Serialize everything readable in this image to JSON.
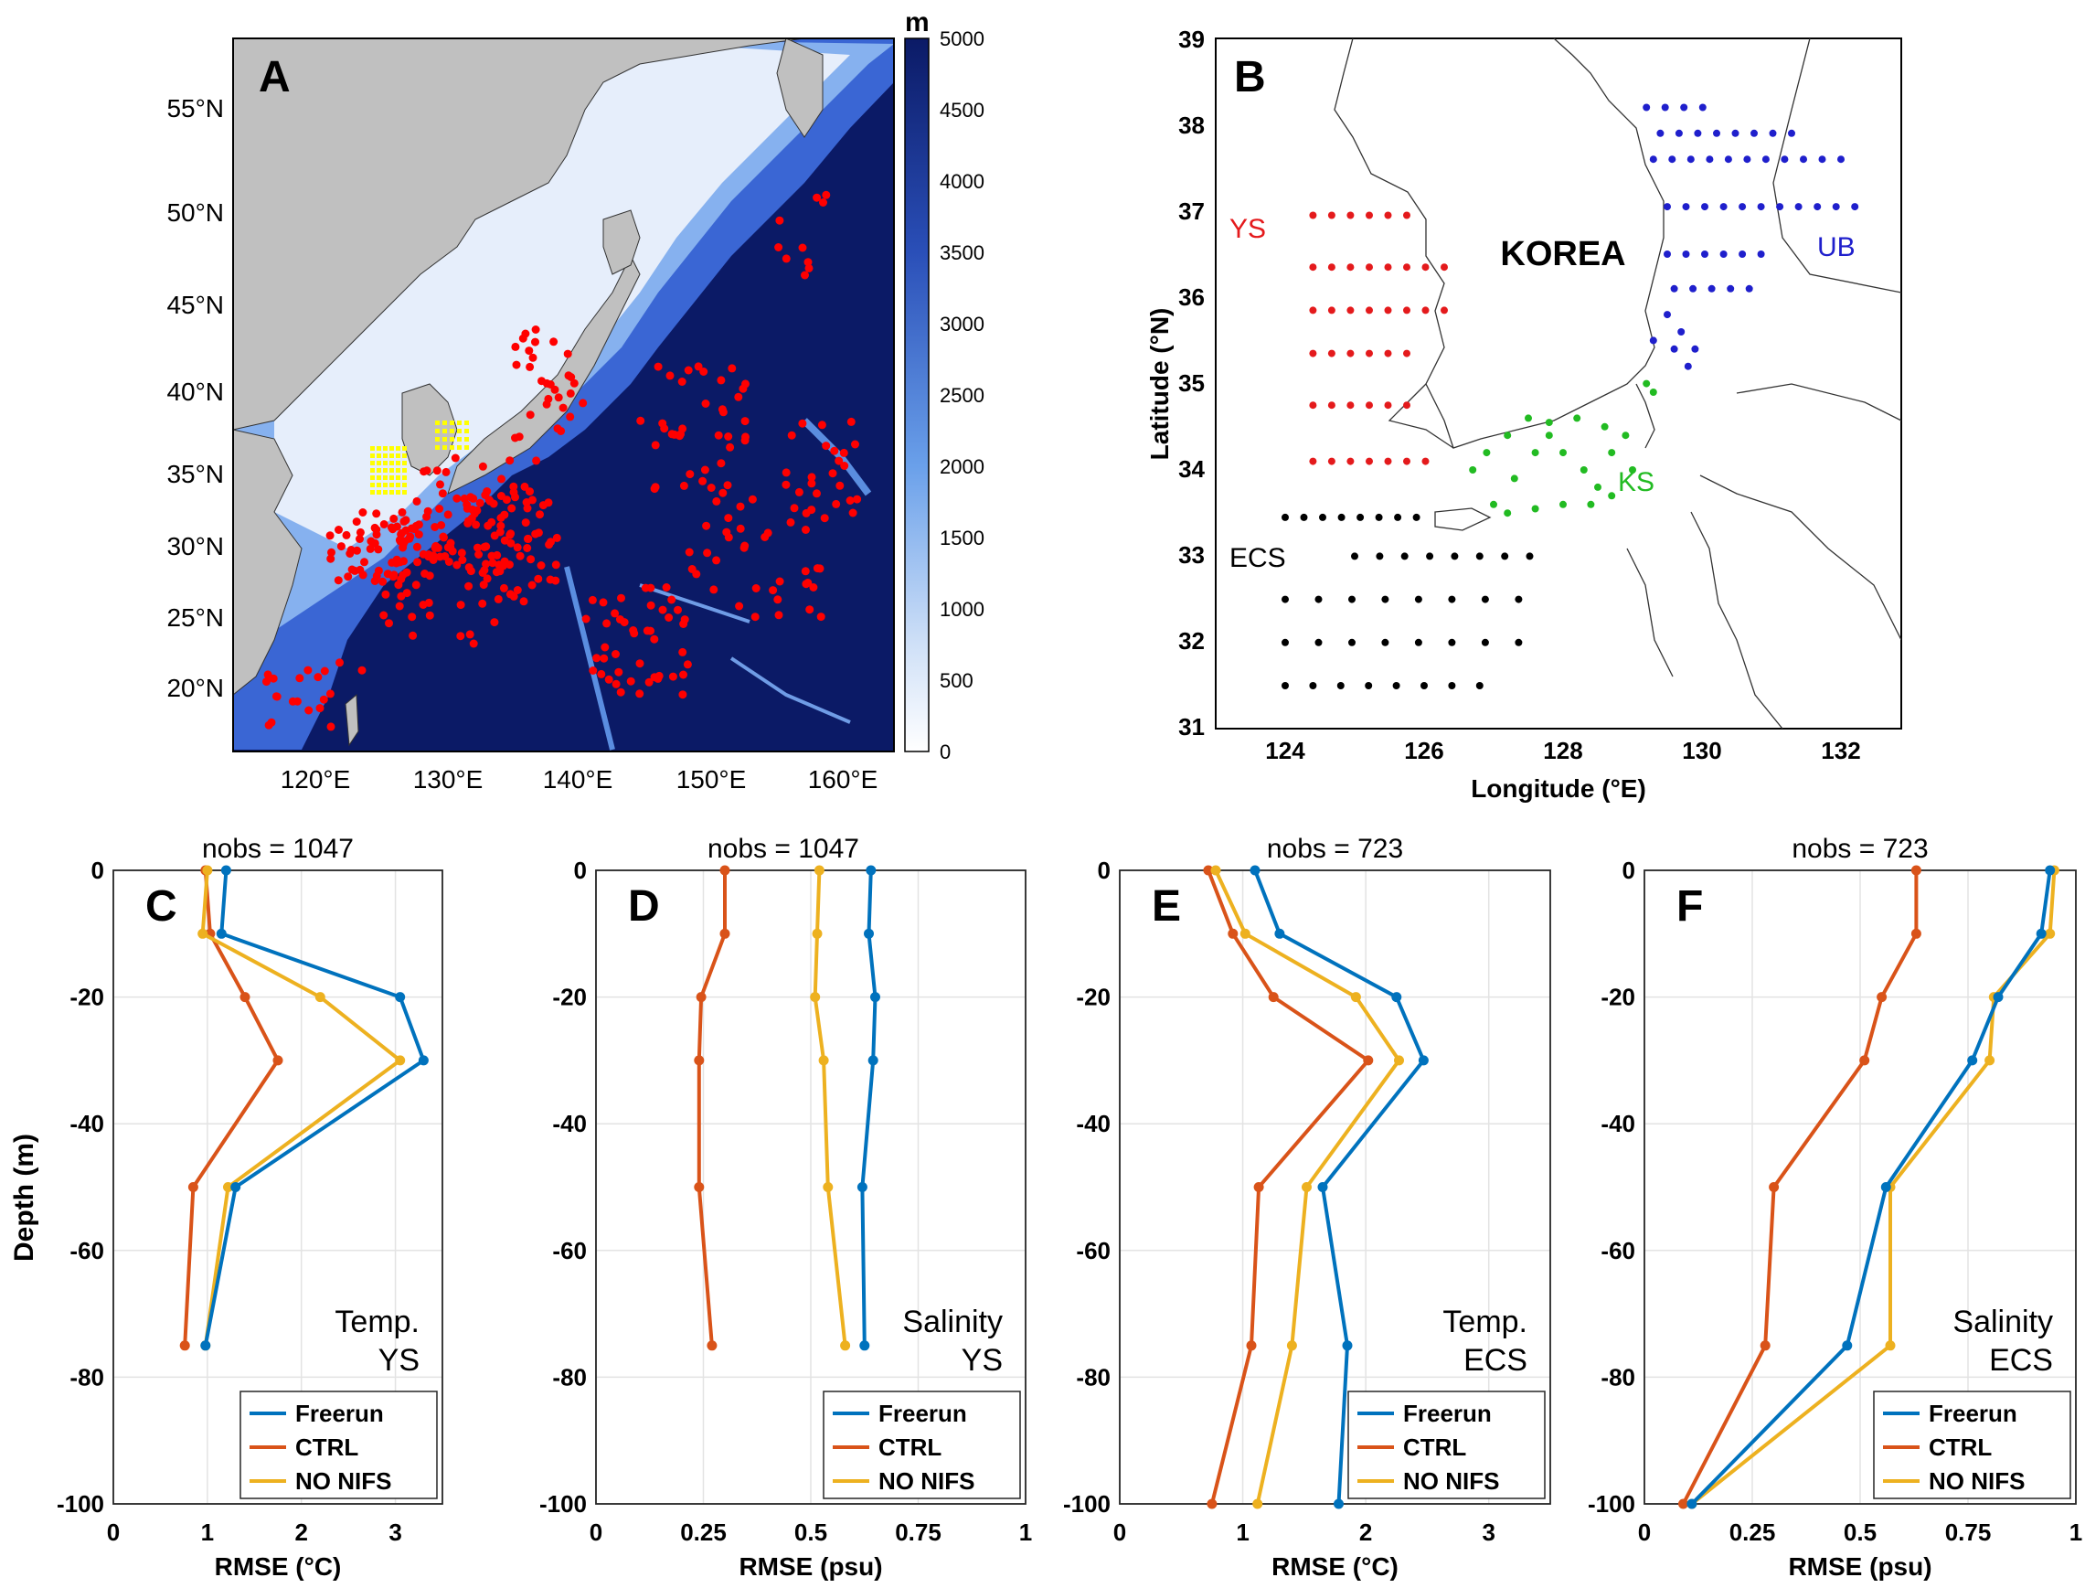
{
  "panels": {
    "A": {
      "letter": "A",
      "colorbar_unit": "m",
      "colorbar_ticks": [
        "5000",
        "4500",
        "4000",
        "3500",
        "3000",
        "2500",
        "2000",
        "1500",
        "1000",
        "500",
        "0"
      ],
      "lat_ticks": [
        "55°N",
        "50°N",
        "45°N",
        "40°N",
        "35°N",
        "30°N",
        "25°N",
        "20°N"
      ],
      "lon_ticks": [
        "120°E",
        "130°E",
        "140°E",
        "150°E",
        "160°E"
      ]
    },
    "B": {
      "letter": "B",
      "xlabel": "Longitude (°E)",
      "ylabel": "Latitude (°N)",
      "x_ticks": [
        "124",
        "126",
        "128",
        "130",
        "132"
      ],
      "y_ticks": [
        "39",
        "38",
        "37",
        "36",
        "35",
        "34",
        "33",
        "32",
        "31"
      ],
      "labels": {
        "korea": "KOREA",
        "ys": "YS",
        "ub": "UB",
        "ks": "KS",
        "ecs": "ECS"
      }
    }
  },
  "legend_labels": [
    "Freerun",
    "CTRL",
    "NO NIFS"
  ],
  "colors": {
    "Freerun": "#0072BD",
    "CTRL": "#D95319",
    "NO NIFS": "#EDB120",
    "ys": "#E41A1C",
    "ub": "#1F1FCC",
    "ks": "#22BB22",
    "ecs": "#000000",
    "obs_yellow": "#FFFF00",
    "obs_red": "#FF0000"
  },
  "ylabel": "Depth (m)",
  "y_ticks": [
    "0",
    "-20",
    "-40",
    "-60",
    "-80",
    "-100"
  ],
  "chart_data": [
    {
      "type": "line",
      "panel": "C",
      "title": "nobs = 1047",
      "annotation": [
        "Temp.",
        "YS"
      ],
      "xlabel": "RMSE (°C)",
      "xlim": [
        0,
        3.5
      ],
      "ylim": [
        -100,
        0
      ],
      "x_ticks": [
        "0",
        "1",
        "2",
        "3"
      ],
      "series": [
        {
          "name": "Freerun",
          "x": [
            1.2,
            1.15,
            3.05,
            3.3,
            1.3,
            0.98
          ],
          "y": [
            0,
            -10,
            -20,
            -30,
            -50,
            -75
          ]
        },
        {
          "name": "CTRL",
          "x": [
            0.98,
            1.03,
            1.4,
            1.75,
            0.85,
            0.76
          ],
          "y": [
            0,
            -10,
            -20,
            -30,
            -50,
            -75
          ]
        },
        {
          "name": "NO NIFS",
          "x": [
            1.0,
            0.95,
            2.2,
            3.05,
            1.22,
            0.98
          ],
          "y": [
            0,
            -10,
            -20,
            -30,
            -50,
            -75
          ]
        }
      ]
    },
    {
      "type": "line",
      "panel": "D",
      "title": "nobs = 1047",
      "annotation": [
        "Salinity",
        "YS"
      ],
      "xlabel": "RMSE (psu)",
      "xlim": [
        0,
        1
      ],
      "ylim": [
        -100,
        0
      ],
      "x_ticks": [
        "0",
        "0.25",
        "0.5",
        "0.75",
        "1"
      ],
      "series": [
        {
          "name": "Freerun",
          "x": [
            0.64,
            0.635,
            0.65,
            0.645,
            0.62,
            0.625
          ],
          "y": [
            0,
            -10,
            -20,
            -30,
            -50,
            -75
          ]
        },
        {
          "name": "CTRL",
          "x": [
            0.3,
            0.3,
            0.245,
            0.24,
            0.24,
            0.27
          ],
          "y": [
            0,
            -10,
            -20,
            -30,
            -50,
            -75
          ]
        },
        {
          "name": "NO NIFS",
          "x": [
            0.52,
            0.515,
            0.51,
            0.53,
            0.54,
            0.58
          ],
          "y": [
            0,
            -10,
            -20,
            -30,
            -50,
            -75
          ]
        }
      ]
    },
    {
      "type": "line",
      "panel": "E",
      "title": "nobs = 723",
      "annotation": [
        "Temp.",
        "ECS"
      ],
      "xlabel": "RMSE (°C)",
      "xlim": [
        0,
        3.5
      ],
      "ylim": [
        -100,
        0
      ],
      "x_ticks": [
        "0",
        "1",
        "2",
        "3"
      ],
      "series": [
        {
          "name": "Freerun",
          "x": [
            1.1,
            1.3,
            2.25,
            2.47,
            1.65,
            1.85,
            1.78
          ],
          "y": [
            0,
            -10,
            -20,
            -30,
            -50,
            -75,
            -100
          ]
        },
        {
          "name": "CTRL",
          "x": [
            0.72,
            0.92,
            1.25,
            2.02,
            1.13,
            1.07,
            0.75
          ],
          "y": [
            0,
            -10,
            -20,
            -30,
            -50,
            -75,
            -100
          ]
        },
        {
          "name": "NO NIFS",
          "x": [
            0.78,
            1.02,
            1.92,
            2.27,
            1.52,
            1.4,
            1.12
          ],
          "y": [
            0,
            -10,
            -20,
            -30,
            -50,
            -75,
            -100
          ]
        }
      ]
    },
    {
      "type": "line",
      "panel": "F",
      "title": "nobs = 723",
      "annotation": [
        "Salinity",
        "ECS"
      ],
      "xlabel": "RMSE (psu)",
      "xlim": [
        0,
        1
      ],
      "ylim": [
        -100,
        0
      ],
      "x_ticks": [
        "0",
        "0.25",
        "0.5",
        "0.75",
        "1"
      ],
      "series": [
        {
          "name": "Freerun",
          "x": [
            0.94,
            0.92,
            0.82,
            0.76,
            0.56,
            0.47,
            0.11
          ],
          "y": [
            0,
            -10,
            -20,
            -30,
            -50,
            -75,
            -100
          ]
        },
        {
          "name": "CTRL",
          "x": [
            0.63,
            0.63,
            0.55,
            0.51,
            0.3,
            0.28,
            0.09
          ],
          "y": [
            0,
            -10,
            -20,
            -30,
            -50,
            -75,
            -100
          ]
        },
        {
          "name": "NO NIFS",
          "x": [
            0.95,
            0.94,
            0.81,
            0.8,
            0.57,
            0.57,
            0.11
          ],
          "y": [
            0,
            -10,
            -20,
            -30,
            -50,
            -75,
            -100
          ]
        }
      ]
    }
  ]
}
